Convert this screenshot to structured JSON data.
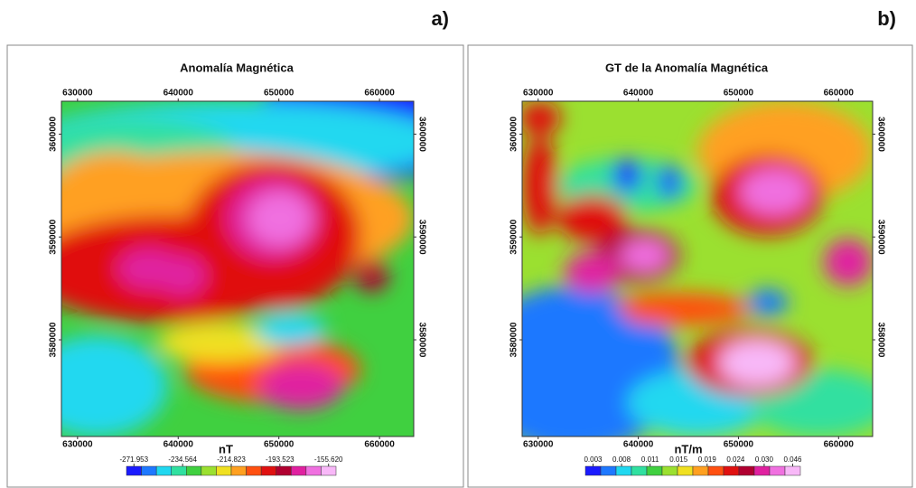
{
  "chart_data": [
    {
      "type": "contour-map",
      "panel_label": "a)",
      "title": "Anomalía Magnética",
      "xlim": [
        628400,
        663400
      ],
      "ylim": [
        3570600,
        3603200
      ],
      "xticks": [
        630000,
        640000,
        650000,
        660000
      ],
      "yticks": [
        3580000,
        3590000,
        3600000
      ],
      "colorbar_label": "nT",
      "colorbar_ticks": [
        -271.953,
        -234.564,
        -214.823,
        -193.523,
        {
          "value": -155.62,
          "label": "-155.620"
        }
      ]
    },
    {
      "type": "contour-map",
      "panel_label": "b)",
      "title": "GT de la Anomalía Magnética",
      "xlim": [
        628400,
        663400
      ],
      "ylim": [
        3570600,
        3603200
      ],
      "xticks": [
        630000,
        640000,
        650000,
        660000
      ],
      "yticks": [
        3580000,
        3590000,
        3600000
      ],
      "colorbar_label": "nT/m",
      "colorbar_ticks": [
        0.003,
        0.008,
        0.011,
        0.015,
        0.019,
        0.024,
        {
          "value": 0.03,
          "label": "0.030"
        },
        0.046
      ]
    }
  ]
}
